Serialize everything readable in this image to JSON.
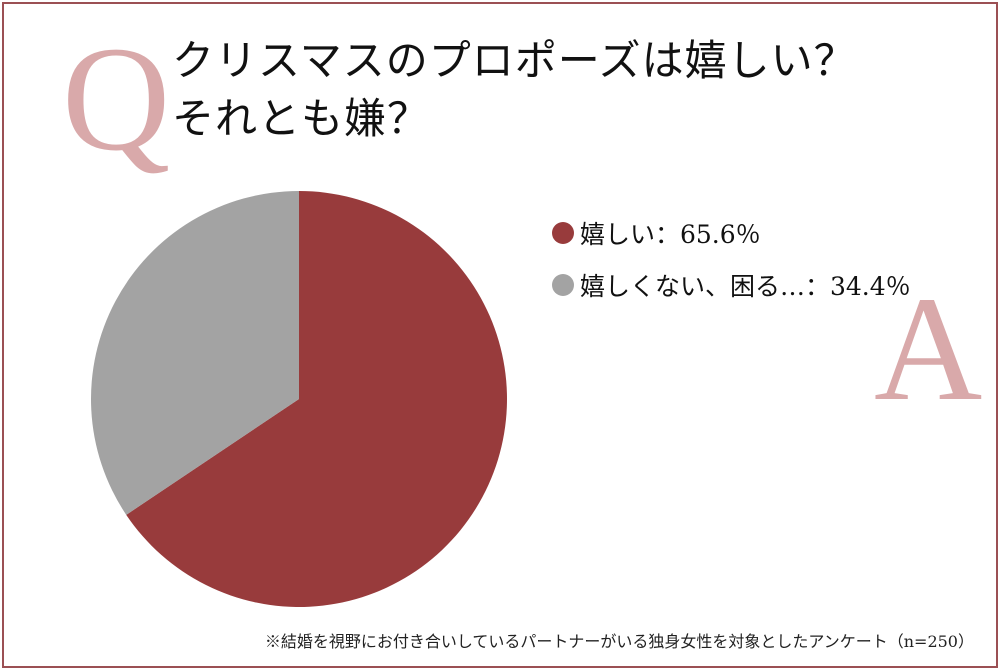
{
  "q_mark": "Q",
  "a_mark": "A",
  "question": {
    "line1": "クリスマスのプロポーズは嬉しい？",
    "line2": "それとも嫌？"
  },
  "chart_data": {
    "type": "pie",
    "start_angle_deg": 0,
    "direction": "clockwise",
    "slices": [
      {
        "label": "嬉しい",
        "value": 65.6,
        "display": "嬉しい：65.6％",
        "color": "#983b3c"
      },
      {
        "label": "嬉しくない、困る…",
        "value": 34.4,
        "display": "嬉しくない、困る…：34.4％",
        "color": "#a3a3a3"
      }
    ],
    "legend_position": "right"
  },
  "footnote": "※結婚を視野にお付き合いしているパートナーがいる独身女性を対象としたアンケート（n=250）",
  "colors": {
    "frame": "#9b5054",
    "accent_letter": "#d9a9aa",
    "positive": "#983b3c",
    "negative": "#a3a3a3"
  }
}
